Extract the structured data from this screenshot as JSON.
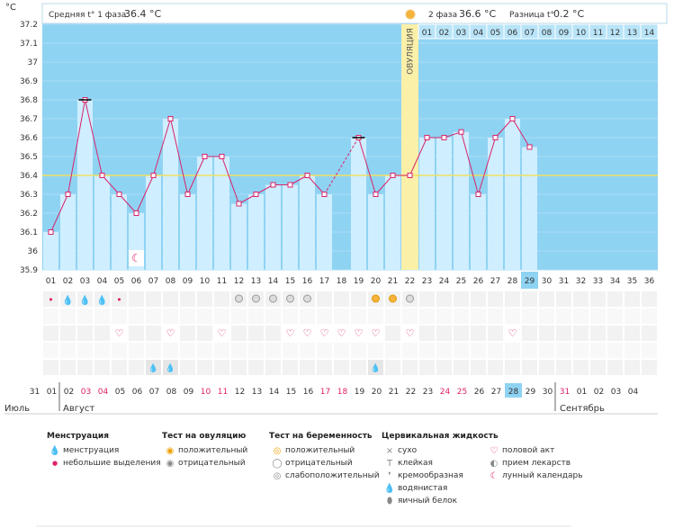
{
  "header": {
    "unit_label": "°C",
    "phase1_label": "Средняя t° 1 фаза",
    "phase1_value": "36.4 °C",
    "phase2_label": "2 фаза",
    "phase2_value": "36.6 °C",
    "diff_label": "Разница t°",
    "diff_value": "0.2 °C",
    "ovulation_label": "ОВУЛЯЦИЯ"
  },
  "chart_data": {
    "type": "line",
    "ylim": [
      35.9,
      37.2
    ],
    "yticks": [
      "37.2",
      "37.1",
      "37",
      "36.9",
      "36.8",
      "36.7",
      "36.6",
      "36.5",
      "36.4",
      "36.3",
      "36.2",
      "36.1",
      "36",
      "35.9"
    ],
    "cycle_days": [
      "01",
      "02",
      "03",
      "04",
      "05",
      "06",
      "07",
      "08",
      "09",
      "10",
      "11",
      "12",
      "13",
      "14",
      "15",
      "16",
      "17",
      "18",
      "19",
      "20",
      "21",
      "22",
      "23",
      "24",
      "25",
      "26",
      "27",
      "28",
      "29",
      "30",
      "31",
      "32",
      "33",
      "34",
      "35",
      "36"
    ],
    "temperatures": [
      36.1,
      36.3,
      36.8,
      36.4,
      36.3,
      36.2,
      36.4,
      36.7,
      36.3,
      36.5,
      36.5,
      36.25,
      36.3,
      36.35,
      36.35,
      36.4,
      36.3,
      null,
      36.6,
      36.3,
      36.4,
      36.4,
      36.6,
      36.6,
      36.63,
      36.3,
      36.6,
      36.7,
      36.55,
      null,
      null,
      null,
      null,
      null,
      null,
      null
    ],
    "coverline": 36.4,
    "ovulation_day": 22,
    "current_day": 29,
    "post_ovulation_days": [
      "01",
      "02",
      "03",
      "04",
      "05",
      "06",
      "07",
      "08",
      "09",
      "10",
      "11",
      "12",
      "13",
      "14"
    ]
  },
  "calendar": {
    "dates": [
      "31",
      "01",
      "02",
      "03",
      "04",
      "05",
      "06",
      "07",
      "08",
      "09",
      "10",
      "11",
      "12",
      "13",
      "14",
      "15",
      "16",
      "17",
      "18",
      "19",
      "20",
      "21",
      "22",
      "23",
      "24",
      "25",
      "26",
      "27",
      "28",
      "29",
      "30",
      "31",
      "01",
      "02",
      "03",
      "04"
    ],
    "red_dates_idx": [
      3,
      4,
      10,
      11,
      17,
      18,
      24,
      25,
      31
    ],
    "current_idx": 28,
    "months": [
      "Июль",
      "Август",
      "Сентябрь"
    ]
  },
  "marks": {
    "menstruation": [
      {
        "day": 1,
        "type": "small"
      },
      {
        "day": 2,
        "type": "heavy"
      },
      {
        "day": 3,
        "type": "heavy"
      },
      {
        "day": 4,
        "type": "heavy"
      },
      {
        "day": 5,
        "type": "small"
      }
    ],
    "moon_day": 6,
    "ovulation_neg": [
      12,
      13,
      14,
      15,
      16,
      22
    ],
    "ovulation_pos": [
      20,
      21
    ],
    "intercourse": [
      5,
      8,
      11,
      15,
      16,
      17,
      18,
      19,
      20,
      22,
      28
    ],
    "fluid_water": [
      7,
      8,
      20
    ]
  },
  "legend": {
    "menstruation": {
      "title": "Менструация",
      "items": [
        "менструация",
        "небольшие выделения"
      ]
    },
    "ovulation_test": {
      "title": "Тест на овуляцию",
      "items": [
        "положительный",
        "отрицательный"
      ]
    },
    "pregnancy_test": {
      "title": "Тест на беременность",
      "items": [
        "положительный",
        "отрицательный",
        "слабоположительный"
      ]
    },
    "cervical": {
      "title": "Цервикальная жидкость",
      "items": [
        "сухо",
        "клейкая",
        "кремообразная",
        "водянистая",
        "яичный белок"
      ]
    },
    "other": {
      "items": [
        "половой акт",
        "прием лекарств",
        "лунный календарь"
      ]
    }
  },
  "colors": {
    "plot_bg": "#8fd3f3",
    "bar_fill": "#cfeeff",
    "ovulation_band": "#fbf0a8",
    "line": "#d8246b",
    "coverline": "#f0e060",
    "current": "#8fd3f3"
  }
}
